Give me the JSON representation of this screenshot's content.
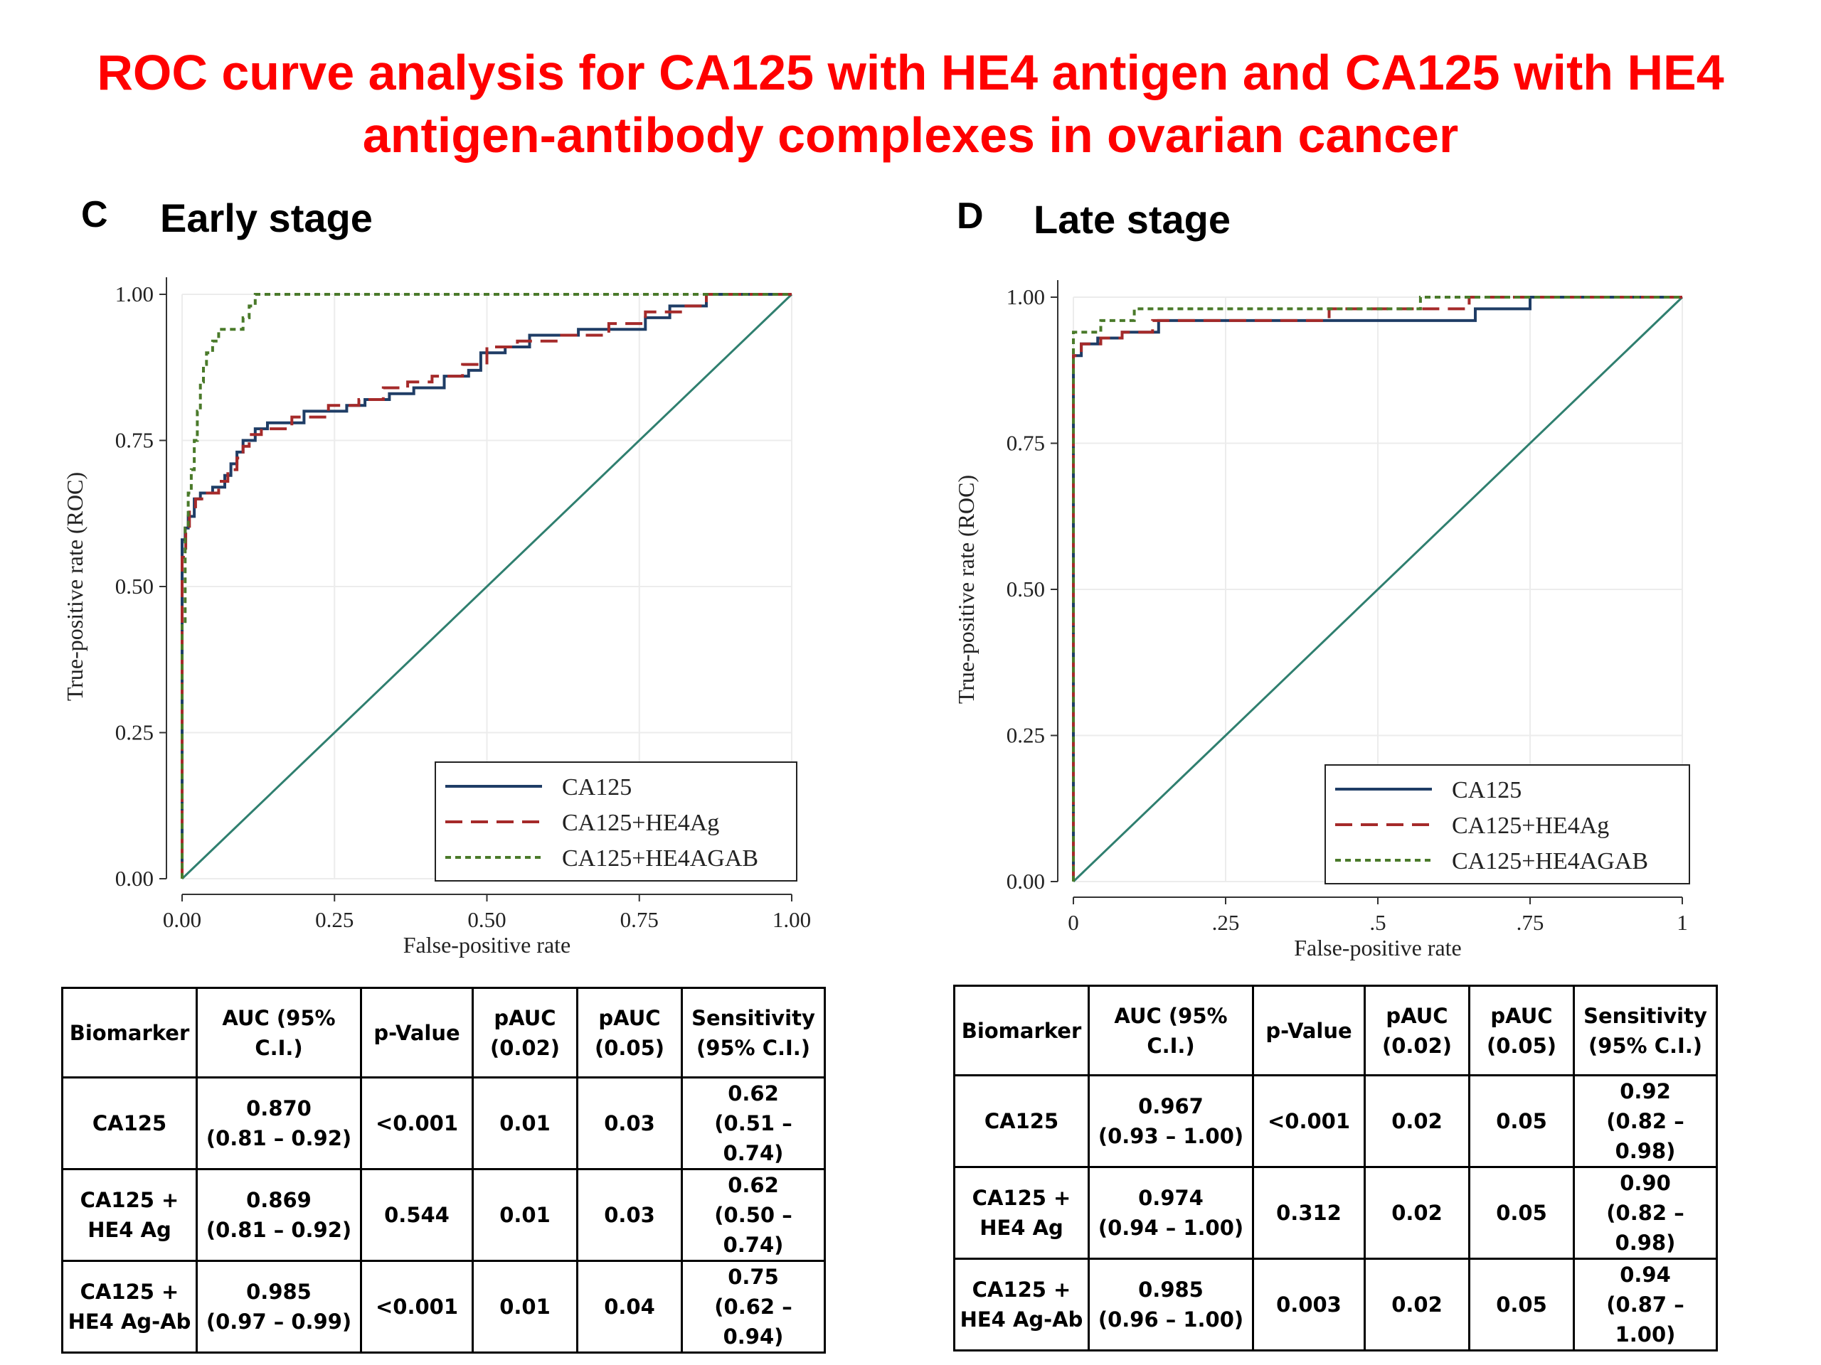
{
  "title_line1": "ROC curve analysis for CA125 with HE4 antigen and CA125 with HE4",
  "title_line2": "antigen-antibody complexes in ovarian cancer",
  "legend": [
    "CA125",
    "CA125+HE4Ag",
    "CA125+HE4AGAB"
  ],
  "colors": {
    "title": "#ff0000",
    "CA125": "#1f3d66",
    "CA125+HE4Ag": "#a52a2a",
    "CA125+HE4AGAB": "#4a7a2a",
    "reference": "#2f7f6f",
    "grid": "#ececec"
  },
  "panels": [
    {
      "letter": "C",
      "title": "Early stage",
      "xlabel": "False-positive rate",
      "ylabel": "True-positive rate (ROC)",
      "xticks": [
        "0.00",
        "0.25",
        "0.50",
        "0.75",
        "1.00"
      ],
      "yticks": [
        "0.00",
        "0.25",
        "0.50",
        "0.75",
        "1.00"
      ],
      "table": {
        "headers": [
          "Biomarker",
          "AUC (95% C.I.)",
          "p-Value",
          "pAUC (0.02)",
          "pAUC (0.05)",
          "Sensitivity (95% C.I.)"
        ],
        "rows": [
          [
            "CA125",
            "0.870",
            "(0.81 – 0.92)",
            "<0.001",
            "0.01",
            "0.03",
            "0.62",
            "(0.51 – 0.74)"
          ],
          [
            "CA125 +",
            "HE4 Ag",
            "0.869",
            "(0.81 – 0.92)",
            "0.544",
            "0.01",
            "0.03",
            "0.62",
            "(0.50 – 0.74)"
          ],
          [
            "CA125 +",
            "HE4 Ag-Ab",
            "0.985",
            "(0.97 – 0.99)",
            "<0.001",
            "0.01",
            "0.04",
            "0.75",
            "(0.62 – 0.94)"
          ]
        ]
      }
    },
    {
      "letter": "D",
      "title": "Late stage",
      "xlabel": "False-positive rate",
      "ylabel": "True-positive rate (ROC)",
      "xticks": [
        "0",
        ".25",
        ".5",
        ".75",
        "1"
      ],
      "yticks": [
        "0.00",
        "0.25",
        "0.50",
        "0.75",
        "1.00"
      ],
      "table": {
        "headers": [
          "Biomarker",
          "AUC (95% C.I.)",
          "p-Value",
          "pAUC (0.02)",
          "pAUC (0.05)",
          "Sensitivity (95% C.I.)"
        ],
        "rows": [
          [
            "CA125",
            "0.967",
            "(0.93 – 1.00)",
            "<0.001",
            "0.02",
            "0.05",
            "0.92",
            "(0.82 – 0.98)"
          ],
          [
            "CA125 +",
            "HE4 Ag",
            "0.974",
            "(0.94 – 1.00)",
            "0.312",
            "0.02",
            "0.05",
            "0.90",
            "(0.82 – 0.98)"
          ],
          [
            "CA125 +",
            "HE4 Ag-Ab",
            "0.985",
            "(0.96 – 1.00)",
            "0.003",
            "0.02",
            "0.05",
            "0.94",
            "(0.87 – 1.00)"
          ]
        ]
      }
    }
  ],
  "chart_data": [
    {
      "type": "line",
      "title": "Early stage",
      "xlabel": "False-positive rate",
      "ylabel": "True-positive rate (ROC)",
      "xlim": [
        0,
        1
      ],
      "ylim": [
        0,
        1
      ],
      "grid": true,
      "legend_position": "bottom-right",
      "series": [
        {
          "name": "CA125",
          "x": [
            0,
            0,
            0.005,
            0.005,
            0.01,
            0.01,
            0.02,
            0.02,
            0.03,
            0.03,
            0.05,
            0.05,
            0.07,
            0.07,
            0.08,
            0.08,
            0.09,
            0.09,
            0.1,
            0.1,
            0.12,
            0.12,
            0.14,
            0.14,
            0.2,
            0.2,
            0.27,
            0.27,
            0.3,
            0.3,
            0.34,
            0.34,
            0.38,
            0.38,
            0.43,
            0.43,
            0.47,
            0.47,
            0.49,
            0.49,
            0.53,
            0.53,
            0.57,
            0.57,
            0.65,
            0.65,
            0.76,
            0.76,
            0.8,
            0.8,
            0.86,
            0.86,
            1.0
          ],
          "y": [
            0,
            0.58,
            0.58,
            0.6,
            0.6,
            0.62,
            0.62,
            0.65,
            0.65,
            0.66,
            0.66,
            0.67,
            0.67,
            0.69,
            0.69,
            0.71,
            0.71,
            0.73,
            0.73,
            0.75,
            0.75,
            0.77,
            0.77,
            0.78,
            0.78,
            0.8,
            0.8,
            0.81,
            0.81,
            0.82,
            0.82,
            0.83,
            0.83,
            0.84,
            0.84,
            0.86,
            0.86,
            0.87,
            0.87,
            0.9,
            0.9,
            0.91,
            0.91,
            0.93,
            0.93,
            0.94,
            0.94,
            0.96,
            0.96,
            0.98,
            0.98,
            1.0,
            1.0
          ]
        },
        {
          "name": "CA125+HE4Ag",
          "x": [
            0,
            0,
            0.006,
            0.006,
            0.012,
            0.012,
            0.022,
            0.022,
            0.035,
            0.035,
            0.06,
            0.06,
            0.075,
            0.075,
            0.09,
            0.09,
            0.1,
            0.1,
            0.11,
            0.11,
            0.13,
            0.13,
            0.18,
            0.18,
            0.24,
            0.24,
            0.29,
            0.29,
            0.33,
            0.33,
            0.37,
            0.37,
            0.41,
            0.41,
            0.46,
            0.46,
            0.5,
            0.5,
            0.55,
            0.55,
            0.62,
            0.62,
            0.7,
            0.7,
            0.76,
            0.76,
            0.82,
            0.82,
            0.86,
            0.86,
            1.0
          ],
          "y": [
            0,
            0.55,
            0.55,
            0.6,
            0.6,
            0.63,
            0.63,
            0.65,
            0.65,
            0.66,
            0.66,
            0.68,
            0.68,
            0.7,
            0.7,
            0.72,
            0.72,
            0.74,
            0.74,
            0.76,
            0.76,
            0.77,
            0.77,
            0.79,
            0.79,
            0.81,
            0.81,
            0.82,
            0.82,
            0.84,
            0.84,
            0.85,
            0.85,
            0.86,
            0.86,
            0.88,
            0.88,
            0.91,
            0.91,
            0.92,
            0.92,
            0.93,
            0.93,
            0.95,
            0.95,
            0.97,
            0.97,
            0.98,
            0.98,
            1.0,
            1.0
          ]
        },
        {
          "name": "CA125+HE4AGAB",
          "x": [
            0,
            0,
            0.005,
            0.005,
            0.01,
            0.01,
            0.015,
            0.015,
            0.02,
            0.02,
            0.025,
            0.025,
            0.03,
            0.03,
            0.035,
            0.035,
            0.04,
            0.04,
            0.05,
            0.05,
            0.06,
            0.06,
            0.1,
            0.1,
            0.11,
            0.11,
            0.12,
            0.12,
            1.0
          ],
          "y": [
            0,
            0.44,
            0.44,
            0.6,
            0.6,
            0.66,
            0.66,
            0.7,
            0.7,
            0.75,
            0.75,
            0.8,
            0.8,
            0.85,
            0.85,
            0.88,
            0.88,
            0.9,
            0.9,
            0.92,
            0.92,
            0.94,
            0.94,
            0.96,
            0.96,
            0.98,
            0.98,
            1.0,
            1.0
          ]
        },
        {
          "name": "",
          "x": [
            0,
            1
          ],
          "y": [
            0,
            1
          ]
        }
      ]
    },
    {
      "type": "line",
      "title": "Late stage",
      "xlabel": "False-positive rate",
      "ylabel": "True-positive rate (ROC)",
      "xlim": [
        0,
        1
      ],
      "ylim": [
        0,
        1
      ],
      "grid": true,
      "legend_position": "bottom-right",
      "series": [
        {
          "name": "CA125",
          "x": [
            0,
            0,
            0.013,
            0.013,
            0.04,
            0.04,
            0.08,
            0.08,
            0.14,
            0.14,
            0.66,
            0.66,
            0.75,
            0.75,
            1.0
          ],
          "y": [
            0,
            0.9,
            0.9,
            0.92,
            0.92,
            0.93,
            0.93,
            0.94,
            0.94,
            0.96,
            0.96,
            0.98,
            0.98,
            1.0,
            1.0
          ]
        },
        {
          "name": "CA125+HE4Ag",
          "x": [
            0,
            0,
            0.013,
            0.013,
            0.045,
            0.045,
            0.08,
            0.08,
            0.13,
            0.13,
            0.42,
            0.42,
            0.65,
            0.65,
            1.0
          ],
          "y": [
            0,
            0.9,
            0.9,
            0.92,
            0.92,
            0.93,
            0.93,
            0.94,
            0.94,
            0.96,
            0.96,
            0.98,
            0.98,
            1.0,
            1.0
          ]
        },
        {
          "name": "CA125+HE4AGAB",
          "x": [
            0,
            0,
            0.045,
            0.045,
            0.1,
            0.1,
            0.57,
            0.57,
            1.0
          ],
          "y": [
            0,
            0.94,
            0.94,
            0.96,
            0.96,
            0.98,
            0.98,
            1.0,
            1.0
          ]
        },
        {
          "name": "",
          "x": [
            0,
            1
          ],
          "y": [
            0,
            1
          ]
        }
      ]
    }
  ]
}
